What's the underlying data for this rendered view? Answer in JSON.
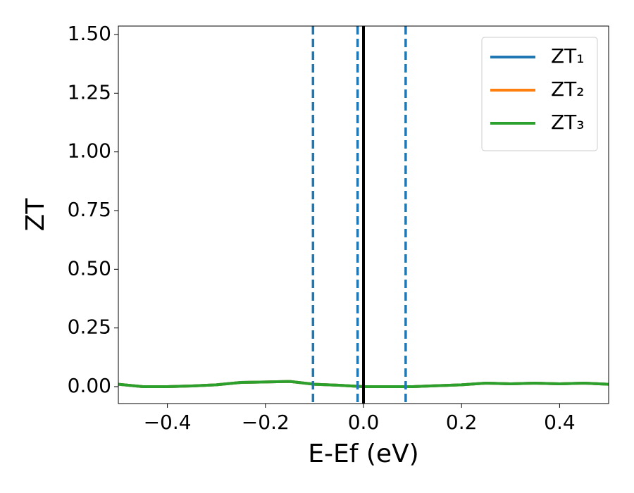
{
  "chart_data": {
    "type": "line",
    "xlabel": "E-Ef (eV)",
    "ylabel": "ZT",
    "x": [
      -0.5,
      -0.45,
      -0.4,
      -0.35,
      -0.3,
      -0.25,
      -0.2,
      -0.15,
      -0.1,
      -0.05,
      0,
      0.05,
      0.1,
      0.15,
      0.2,
      0.25,
      0.3,
      0.35,
      0.4,
      0.45,
      0.5
    ],
    "series": [
      {
        "name": "ZT₁",
        "color": "#1f77b4",
        "values": [
          0.01,
          0.0,
          0.0,
          0.003,
          0.008,
          0.018,
          0.02,
          0.022,
          0.01,
          0.006,
          0.0,
          0.0,
          0.0,
          0.004,
          0.008,
          0.015,
          0.012,
          0.015,
          0.012,
          0.015,
          0.01
        ]
      },
      {
        "name": "ZT₂",
        "color": "#ff7f0e",
        "values": [
          0.01,
          0.0,
          0.0,
          0.003,
          0.008,
          0.018,
          0.02,
          0.022,
          0.01,
          0.006,
          0.0,
          0.0,
          0.0,
          0.004,
          0.008,
          0.015,
          0.012,
          0.015,
          0.012,
          0.015,
          0.01
        ]
      },
      {
        "name": "ZT₃",
        "color": "#2ca02c",
        "values": [
          0.01,
          0.0,
          0.0,
          0.003,
          0.008,
          0.018,
          0.02,
          0.022,
          0.01,
          0.006,
          0.0,
          0.0,
          0.0,
          0.004,
          0.008,
          0.015,
          0.012,
          0.015,
          0.012,
          0.015,
          0.01
        ]
      }
    ],
    "vlines": [
      {
        "x": -0.103,
        "color": "#1f77b4",
        "style": "dashed"
      },
      {
        "x": -0.012,
        "color": "#1f77b4",
        "style": "dashed"
      },
      {
        "x": 0.086,
        "color": "#1f77b4",
        "style": "dashed"
      },
      {
        "x": 0,
        "color": "#000000",
        "style": "solid"
      }
    ],
    "xlim": [
      -0.5,
      0.5
    ],
    "xticks": [
      {
        "value": -0.4,
        "label": "−0.4"
      },
      {
        "value": -0.2,
        "label": "−0.2"
      },
      {
        "value": 0,
        "label": "0.0"
      },
      {
        "value": 0.2,
        "label": "0.2"
      },
      {
        "value": 0.4,
        "label": "0.4"
      }
    ],
    "ylim": [
      -0.072,
      1.536
    ],
    "yticks": [
      {
        "value": 0,
        "label": "0.00"
      },
      {
        "value": 0.25,
        "label": "0.25"
      },
      {
        "value": 0.5,
        "label": "0.50"
      },
      {
        "value": 0.75,
        "label": "0.75"
      },
      {
        "value": 1,
        "label": "1.00"
      },
      {
        "value": 1.25,
        "label": "1.25"
      },
      {
        "value": 1.5,
        "label": "1.50"
      }
    ],
    "legend": "upper right",
    "grid": false
  }
}
